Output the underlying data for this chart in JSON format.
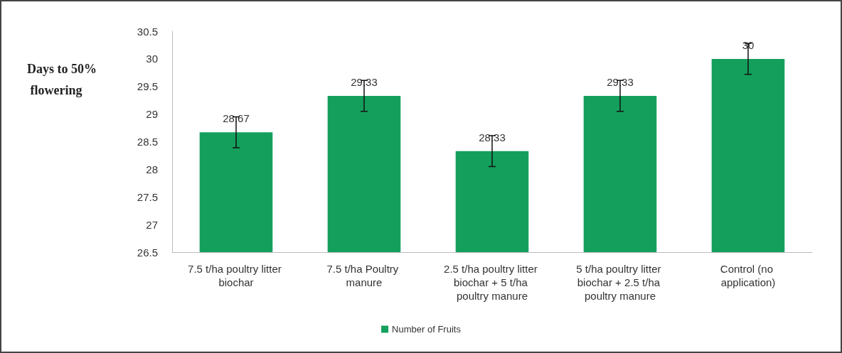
{
  "chart_data": {
    "type": "bar",
    "ylabel": "Days to 50% flowering",
    "categories": [
      "7.5 t/ha poultry litter biochar",
      "7.5 t/ha Poultry manure",
      "2.5 t/ha poultry litter biochar + 5 t/ha poultry manure",
      "5 t/ha poultry litter biochar + 2.5 t/ha poultry manure",
      "Control (no application)"
    ],
    "series": [
      {
        "name": "Number of Fruits",
        "color": "#14a05c",
        "values": [
          28.67,
          29.33,
          28.33,
          29.33,
          30
        ],
        "errors": [
          0.28,
          0.28,
          0.28,
          0.28,
          0.28
        ]
      }
    ],
    "ylim": [
      26.5,
      30.5
    ],
    "yticks": [
      26.5,
      27,
      27.5,
      28,
      28.5,
      29,
      29.5,
      30,
      30.5
    ],
    "data_labels": true,
    "grid": false,
    "legend": "bottom"
  }
}
